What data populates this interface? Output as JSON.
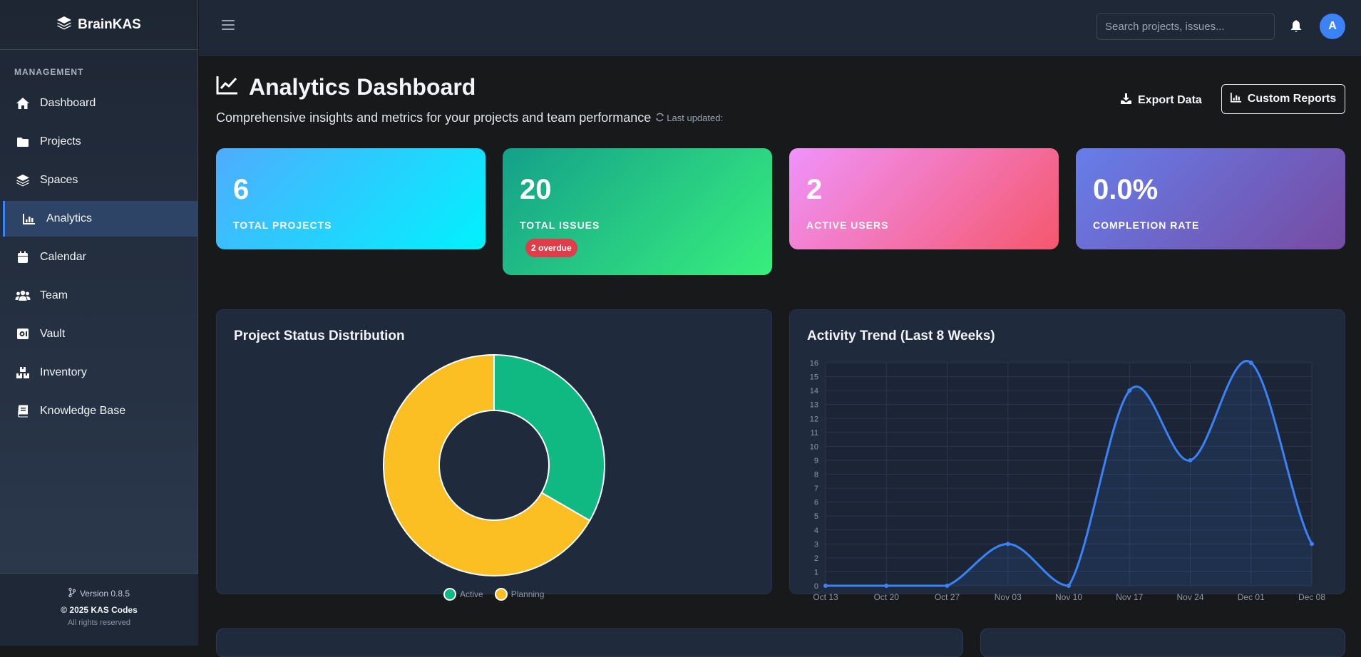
{
  "brand": {
    "name": "BrainKAS"
  },
  "sidebar": {
    "section": "MANAGEMENT",
    "items": [
      {
        "label": "Dashboard",
        "icon": "home-icon"
      },
      {
        "label": "Projects",
        "icon": "folder-icon"
      },
      {
        "label": "Spaces",
        "icon": "layers-icon"
      },
      {
        "label": "Analytics",
        "icon": "chart-bar-icon",
        "active": true
      },
      {
        "label": "Calendar",
        "icon": "calendar-icon"
      },
      {
        "label": "Team",
        "icon": "users-icon"
      },
      {
        "label": "Vault",
        "icon": "vault-icon"
      },
      {
        "label": "Inventory",
        "icon": "boxes-icon"
      },
      {
        "label": "Knowledge Base",
        "icon": "book-icon"
      }
    ],
    "footer": {
      "version": "Version 0.8.5",
      "copyright": "© 2025 KAS Codes",
      "rights": "All rights reserved"
    }
  },
  "topbar": {
    "search_placeholder": "Search projects, issues...",
    "avatar_initial": "A"
  },
  "header": {
    "title": "Analytics Dashboard",
    "subtitle": "Comprehensive insights and metrics for your projects and team performance",
    "last_updated": "Last updated:",
    "export_label": "Export Data",
    "custom_reports_label": "Custom Reports"
  },
  "stats": [
    {
      "value": "6",
      "label": "TOTAL PROJECTS"
    },
    {
      "value": "20",
      "label": "TOTAL ISSUES",
      "badge": "2 overdue"
    },
    {
      "value": "2",
      "label": "ACTIVE USERS"
    },
    {
      "value": "0.0%",
      "label": "COMPLETION RATE"
    }
  ],
  "colors": {
    "accent": "#3b82f6",
    "active": "#10b981",
    "planning": "#fbbf24",
    "badge": "#e03c4a"
  },
  "chart_data": [
    {
      "type": "pie",
      "title": "Project Status Distribution",
      "categories": [
        "Active",
        "Planning"
      ],
      "values": [
        2,
        4
      ],
      "colors": [
        "#10b981",
        "#fbbf24"
      ],
      "legend": "bottom"
    },
    {
      "type": "line",
      "title": "Activity Trend (Last 8 Weeks)",
      "x": [
        "Oct 13",
        "Oct 20",
        "Oct 27",
        "Nov 03",
        "Nov 10",
        "Nov 17",
        "Nov 24",
        "Dec 01",
        "Dec 08"
      ],
      "series": [
        {
          "values": [
            0,
            0,
            0,
            3,
            0,
            14,
            9,
            16,
            3
          ]
        }
      ],
      "ylim": [
        0,
        16
      ],
      "yticks": [
        "0",
        "1",
        "2",
        "3",
        "4",
        "5",
        "6",
        "7",
        "8",
        "9",
        "10",
        "11",
        "12",
        "13",
        "14",
        "15",
        "16"
      ],
      "grid": true
    }
  ]
}
